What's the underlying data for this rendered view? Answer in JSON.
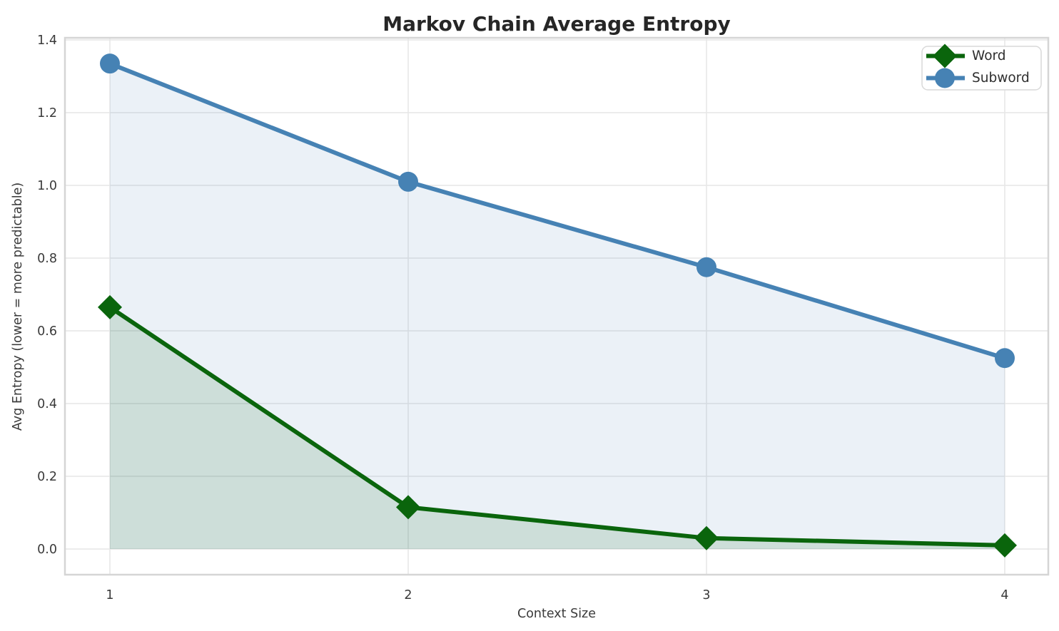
{
  "chart_data": {
    "type": "line",
    "title": "Markov Chain Average Entropy",
    "xlabel": "Context Size",
    "ylabel": "Avg Entropy (lower = more predictable)",
    "x": [
      1,
      2,
      3,
      4
    ],
    "xtick_labels": [
      "1",
      "2",
      "3",
      "4"
    ],
    "ytick_values": [
      0.0,
      0.2,
      0.4,
      0.6,
      0.8,
      1.0,
      1.2,
      1.4
    ],
    "ytick_labels": [
      "0.0",
      "0.2",
      "0.4",
      "0.6",
      "0.8",
      "1.0",
      "1.2",
      "1.4"
    ],
    "xlim": [
      0.85,
      4.15
    ],
    "ylim": [
      -0.07,
      1.4
    ],
    "grid": true,
    "legend": {
      "position": "top-right",
      "entries": [
        "Word",
        "Subword"
      ]
    },
    "series": [
      {
        "name": "Word",
        "marker": "diamond",
        "color": "#0a650c",
        "fill_opacity": 0.13,
        "values": [
          0.665,
          0.115,
          0.03,
          0.01
        ]
      },
      {
        "name": "Subword",
        "marker": "circle",
        "color": "#4682b4",
        "fill_opacity": 0.11,
        "values": [
          1.335,
          1.01,
          0.775,
          0.525
        ]
      }
    ]
  },
  "theme": {
    "background": "#ffffff",
    "grid_color": "#e6e6e6",
    "frame_color": "#d5d5d5",
    "title_color": "#262626",
    "text_color": "#3a3a3a",
    "legend_border": "#d9d9d9",
    "legend_background": "#ffffff"
  }
}
